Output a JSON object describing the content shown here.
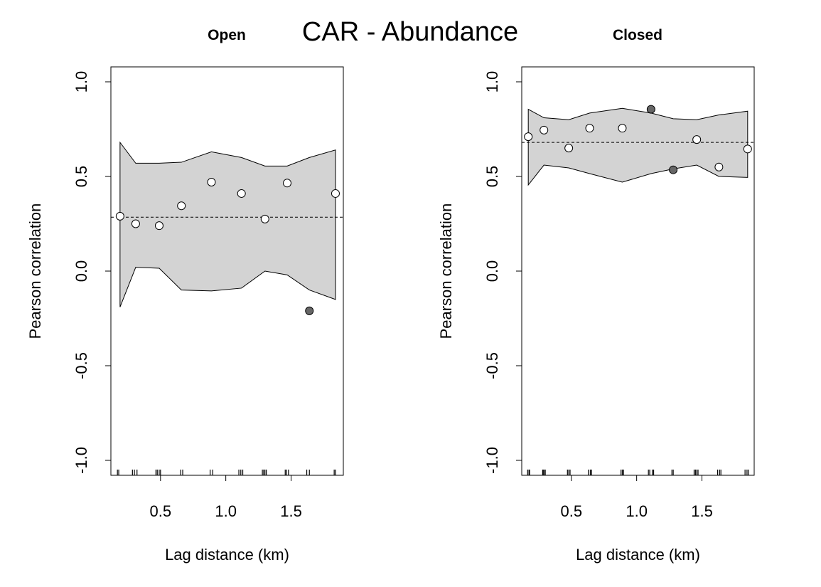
{
  "title": "CAR - Abundance",
  "chart_data": [
    {
      "type": "scatter",
      "title": "Open",
      "xlabel": "Lag distance (km)",
      "ylabel": "Pearson correlation",
      "xlim": [
        0.12,
        1.9
      ],
      "ylim": [
        -1.0,
        1.0
      ],
      "x_ticks": [
        0.5,
        1.0,
        1.5
      ],
      "x_tick_labels": [
        "0.5",
        "1.0",
        "1.5"
      ],
      "y_ticks": [
        -1.0,
        -0.5,
        0.0,
        0.5,
        1.0
      ],
      "y_tick_labels": [
        "-1.0",
        "-0.5",
        "0.0",
        "0.5",
        "1.0"
      ],
      "reference_line": 0.285,
      "envelope": {
        "x": [
          0.19,
          0.31,
          0.49,
          0.66,
          0.89,
          1.12,
          1.3,
          1.47,
          1.64,
          1.84
        ],
        "lower": [
          -0.19,
          0.02,
          0.015,
          -0.1,
          -0.105,
          -0.09,
          0.0,
          -0.02,
          -0.1,
          -0.15
        ],
        "upper": [
          0.68,
          0.57,
          0.57,
          0.575,
          0.63,
          0.6,
          0.555,
          0.555,
          0.6,
          0.64
        ]
      },
      "points": [
        {
          "x": 0.19,
          "y": 0.29,
          "significant": false
        },
        {
          "x": 0.31,
          "y": 0.25,
          "significant": false
        },
        {
          "x": 0.49,
          "y": 0.24,
          "significant": false
        },
        {
          "x": 0.66,
          "y": 0.345,
          "significant": false
        },
        {
          "x": 0.89,
          "y": 0.47,
          "significant": false
        },
        {
          "x": 1.12,
          "y": 0.41,
          "significant": false
        },
        {
          "x": 1.3,
          "y": 0.275,
          "significant": false
        },
        {
          "x": 1.47,
          "y": 0.465,
          "significant": false
        },
        {
          "x": 1.64,
          "y": -0.21,
          "significant": true
        },
        {
          "x": 1.84,
          "y": 0.41,
          "significant": false
        }
      ],
      "rug": [
        0.17,
        0.18,
        0.285,
        0.3,
        0.32,
        0.465,
        0.475,
        0.49,
        0.5,
        0.655,
        0.67,
        0.88,
        0.9,
        1.1,
        1.115,
        1.13,
        1.28,
        1.29,
        1.3,
        1.31,
        1.455,
        1.465,
        1.48,
        1.62,
        1.64,
        1.83,
        1.84
      ]
    },
    {
      "type": "scatter",
      "title": "Closed",
      "xlabel": "Lag distance (km)",
      "ylabel": "Pearson correlation",
      "xlim": [
        0.12,
        1.9
      ],
      "ylim": [
        -1.0,
        1.0
      ],
      "x_ticks": [
        0.5,
        1.0,
        1.5
      ],
      "x_tick_labels": [
        "0.5",
        "1.0",
        "1.5"
      ],
      "y_ticks": [
        -1.0,
        -0.5,
        0.0,
        0.5,
        1.0
      ],
      "y_tick_labels": [
        "-1.0",
        "-0.5",
        "0.0",
        "0.5",
        "1.0"
      ],
      "reference_line": 0.68,
      "envelope": {
        "x": [
          0.17,
          0.29,
          0.48,
          0.64,
          0.89,
          1.11,
          1.28,
          1.46,
          1.63,
          1.85
        ],
        "lower": [
          0.455,
          0.56,
          0.545,
          0.515,
          0.47,
          0.515,
          0.54,
          0.56,
          0.5,
          0.495
        ],
        "upper": [
          0.855,
          0.81,
          0.8,
          0.835,
          0.86,
          0.835,
          0.805,
          0.8,
          0.825,
          0.845
        ]
      },
      "points": [
        {
          "x": 0.17,
          "y": 0.71,
          "significant": false
        },
        {
          "x": 0.29,
          "y": 0.745,
          "significant": false
        },
        {
          "x": 0.48,
          "y": 0.65,
          "significant": false
        },
        {
          "x": 0.64,
          "y": 0.755,
          "significant": false
        },
        {
          "x": 0.89,
          "y": 0.755,
          "significant": false
        },
        {
          "x": 1.11,
          "y": 0.855,
          "significant": true
        },
        {
          "x": 1.28,
          "y": 0.535,
          "significant": true
        },
        {
          "x": 1.46,
          "y": 0.695,
          "significant": false
        },
        {
          "x": 1.63,
          "y": 0.55,
          "significant": false
        },
        {
          "x": 1.85,
          "y": 0.645,
          "significant": false
        }
      ],
      "rug": [
        0.165,
        0.175,
        0.18,
        0.28,
        0.285,
        0.295,
        0.3,
        0.47,
        0.48,
        0.49,
        0.63,
        0.645,
        0.655,
        0.88,
        0.89,
        0.9,
        1.09,
        1.1,
        1.12,
        1.13,
        1.27,
        1.28,
        1.44,
        1.45,
        1.46,
        1.47,
        1.62,
        1.635,
        1.645,
        1.83,
        1.845,
        1.855
      ]
    }
  ],
  "colors": {
    "envelope_fill": "#d3d3d3",
    "significant_point": "#666666",
    "nonsignificant_point": "#ffffff",
    "outline": "#000000"
  }
}
